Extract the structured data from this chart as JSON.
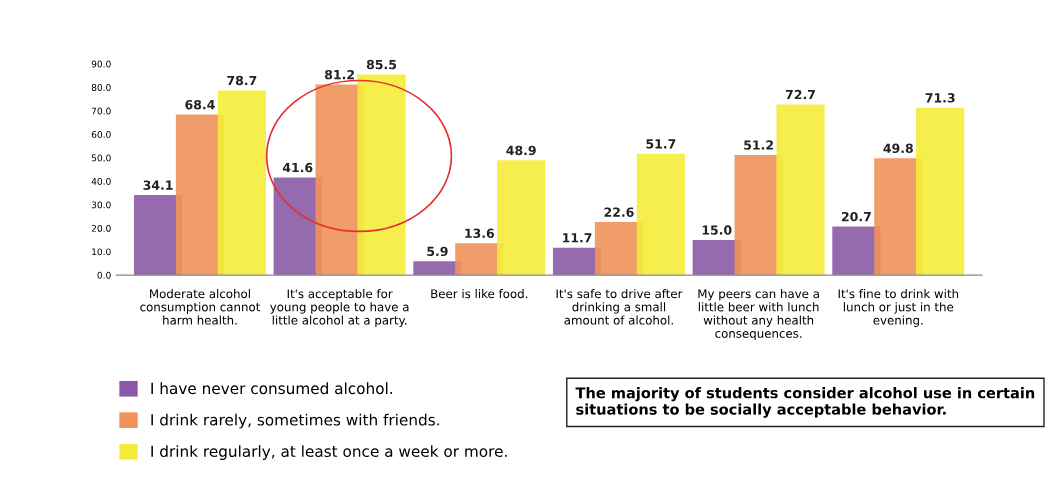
{
  "chart_data": {
    "type": "bar",
    "categories": [
      "Moderate alcohol\nconsumption cannot\nharm health.",
      "It's acceptable for\nyoung people to have a\nlittle alcohol at a party.",
      "Beer is like food.",
      "It's safe to drive after\ndrinking a small\namount of alcohol.",
      "My peers can have a\nlittle beer with lunch\nwithout any health\nconsequences.",
      "It's fine to drink with\nlunch or just in the\nevening."
    ],
    "series": [
      {
        "name": "I have never consumed alcohol.",
        "color": "#8a5aa6",
        "values": [
          34.1,
          41.6,
          5.9,
          11.7,
          15.0,
          20.7
        ],
        "value_labels": [
          "34.1",
          "41.6",
          "5.9",
          "11.7",
          "15.0",
          "20.7"
        ]
      },
      {
        "name": "I drink rarely, sometimes with friends.",
        "color": "#f0925a",
        "values": [
          68.4,
          81.2,
          13.6,
          22.6,
          51.2,
          49.8
        ],
        "value_labels": [
          "68.4",
          "81.2",
          "13.6",
          "22.6",
          "51.2",
          "49.8"
        ]
      },
      {
        "name": "I drink regularly, at least once a week or more.",
        "color": "#f4ec3a",
        "values": [
          78.7,
          85.5,
          48.9,
          51.7,
          72.7,
          71.3
        ],
        "value_labels": [
          "78.7",
          "85.5",
          "48.9",
          "51.7",
          "72.7",
          "71.3"
        ]
      }
    ],
    "ylim": [
      0,
      90
    ],
    "yticks": [
      {
        "value": 0,
        "label": "0.0"
      },
      {
        "value": 10,
        "label": "10.0"
      },
      {
        "value": 20,
        "label": "20.0"
      },
      {
        "value": 30,
        "label": "30.0"
      },
      {
        "value": 40,
        "label": "40.0"
      },
      {
        "value": 50,
        "label": "50.0"
      },
      {
        "value": 60,
        "label": "60.0"
      },
      {
        "value": 70,
        "label": "70.0"
      },
      {
        "value": 80,
        "label": "80.0"
      },
      {
        "value": 90,
        "label": "90.0"
      }
    ],
    "grid": false,
    "legend": "bottom left",
    "annotations": [
      "The majority of students consider alcohol use in certain situations to be socially acceptable behavior."
    ]
  }
}
